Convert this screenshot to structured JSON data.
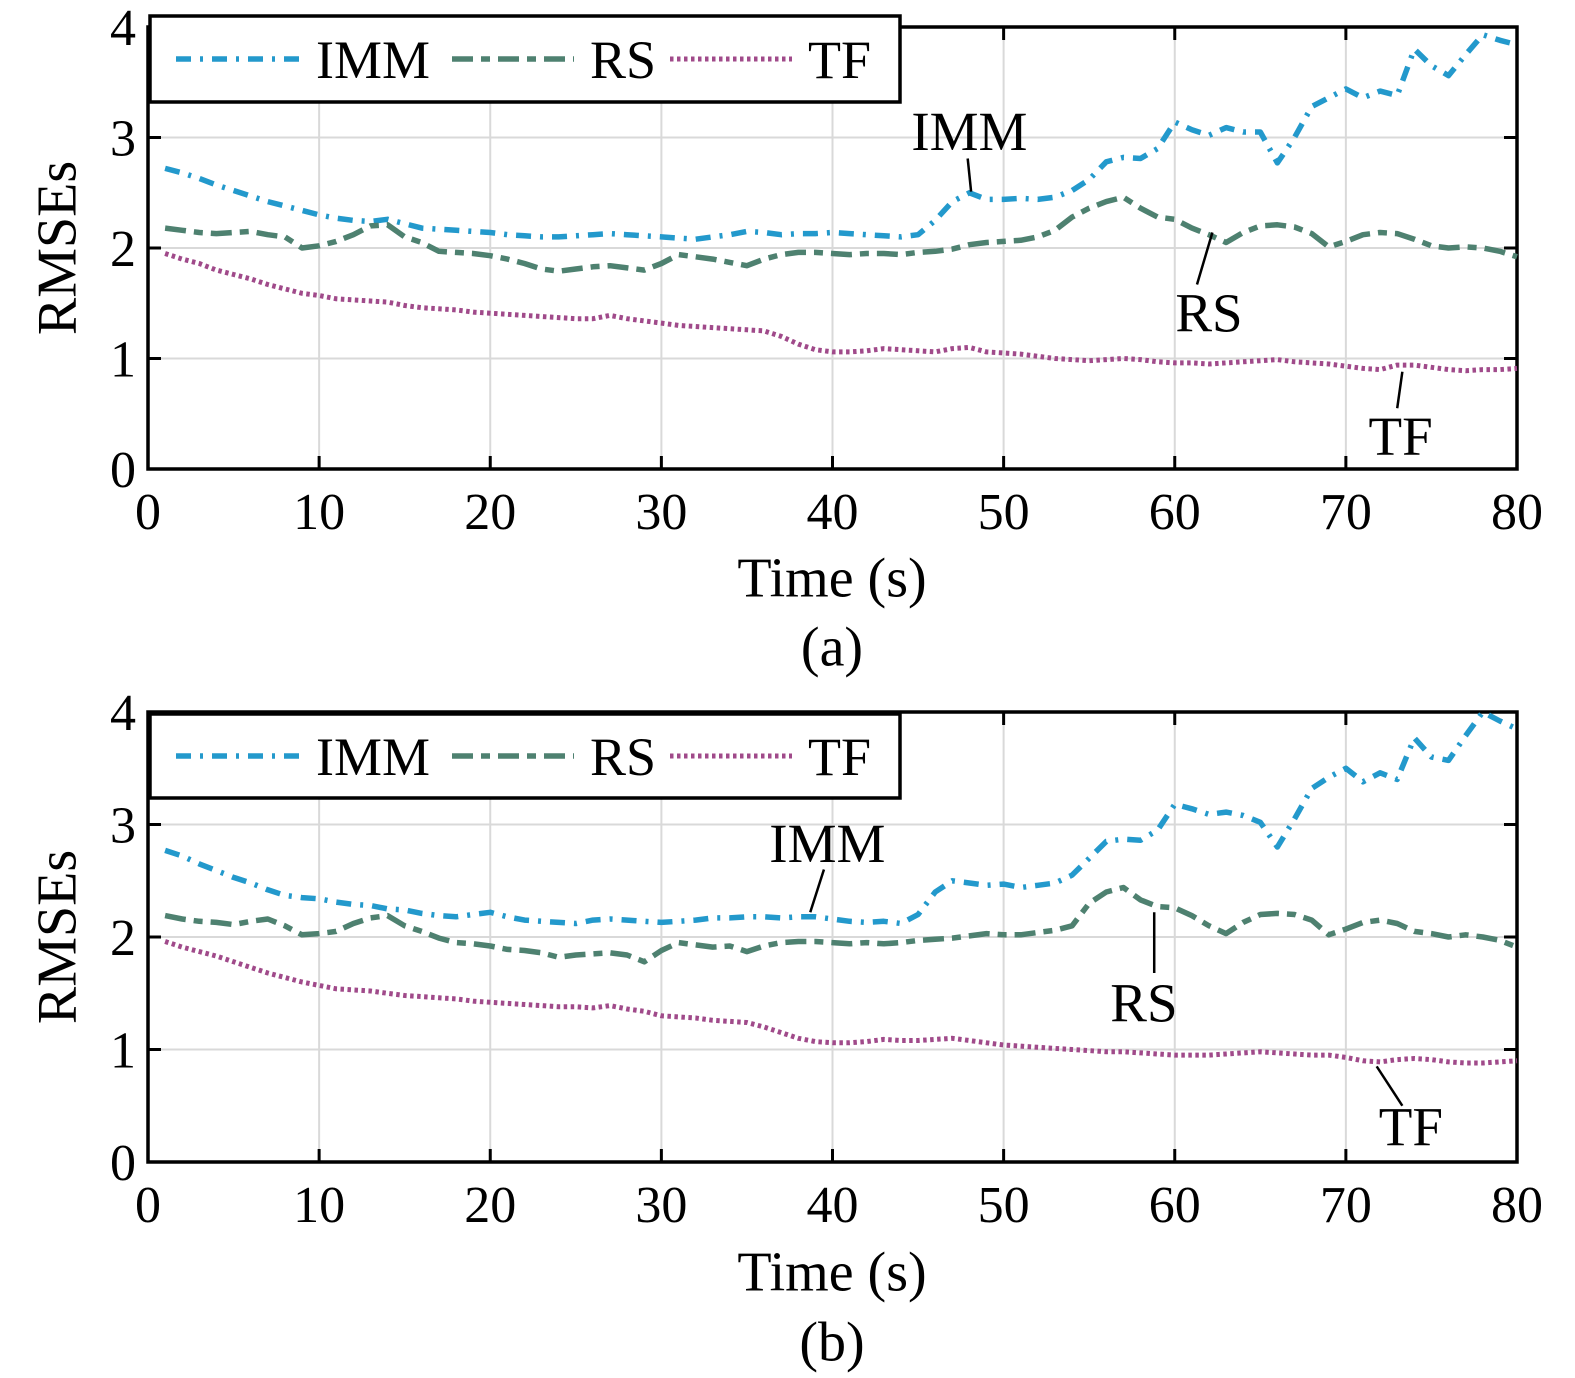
{
  "colors": {
    "imm": "#2399cc",
    "rs": "#4e8170",
    "tf": "#a04a8a",
    "grid": "#d9d9d9",
    "axis": "#000000"
  },
  "chart_data": [
    {
      "type": "line",
      "title": "(a)",
      "xlabel": "Time (s)",
      "ylabel": "RMSEs",
      "xlim": [
        0,
        80
      ],
      "ylim": [
        0,
        4
      ],
      "xticks": [
        0,
        10,
        20,
        30,
        40,
        50,
        60,
        70,
        80
      ],
      "yticks": [
        0,
        1,
        2,
        3,
        4
      ],
      "grid": true,
      "legend_position": "top-inside",
      "x_start": 1,
      "x_step": 1,
      "series": [
        {
          "name": "IMM",
          "color_key": "imm",
          "values": [
            2.72,
            2.68,
            2.63,
            2.57,
            2.52,
            2.47,
            2.42,
            2.38,
            2.34,
            2.3,
            2.27,
            2.25,
            2.24,
            2.26,
            2.22,
            2.18,
            2.17,
            2.16,
            2.15,
            2.14,
            2.12,
            2.11,
            2.1,
            2.1,
            2.11,
            2.12,
            2.13,
            2.12,
            2.11,
            2.1,
            2.09,
            2.08,
            2.1,
            2.12,
            2.15,
            2.14,
            2.12,
            2.13,
            2.13,
            2.14,
            2.13,
            2.12,
            2.11,
            2.1,
            2.12,
            2.25,
            2.42,
            2.5,
            2.44,
            2.44,
            2.45,
            2.44,
            2.46,
            2.52,
            2.62,
            2.78,
            2.82,
            2.81,
            2.9,
            3.14,
            3.07,
            3.02,
            3.09,
            3.05,
            3.05,
            2.77,
            3.0,
            3.28,
            3.36,
            3.44,
            3.36,
            3.42,
            3.38,
            3.8,
            3.65,
            3.56,
            3.75,
            3.93,
            3.88,
            3.84
          ]
        },
        {
          "name": "RS",
          "color_key": "rs",
          "values": [
            2.18,
            2.16,
            2.14,
            2.13,
            2.14,
            2.15,
            2.12,
            2.1,
            2.0,
            2.02,
            2.06,
            2.12,
            2.2,
            2.21,
            2.1,
            2.05,
            1.97,
            1.96,
            1.95,
            1.93,
            1.9,
            1.86,
            1.81,
            1.79,
            1.81,
            1.83,
            1.84,
            1.82,
            1.8,
            1.86,
            1.94,
            1.92,
            1.9,
            1.87,
            1.84,
            1.9,
            1.94,
            1.96,
            1.96,
            1.95,
            1.94,
            1.95,
            1.95,
            1.94,
            1.96,
            1.97,
            1.99,
            2.03,
            2.05,
            2.06,
            2.07,
            2.1,
            2.16,
            2.28,
            2.36,
            2.42,
            2.46,
            2.36,
            2.28,
            2.26,
            2.18,
            2.12,
            2.05,
            2.14,
            2.2,
            2.21,
            2.19,
            2.13,
            2.01,
            2.06,
            2.12,
            2.14,
            2.13,
            2.08,
            2.02,
            2.0,
            2.01,
            2.0,
            1.97,
            1.92
          ]
        },
        {
          "name": "TF",
          "color_key": "tf",
          "values": [
            1.95,
            1.9,
            1.86,
            1.8,
            1.76,
            1.72,
            1.67,
            1.63,
            1.59,
            1.57,
            1.54,
            1.53,
            1.52,
            1.51,
            1.48,
            1.46,
            1.45,
            1.44,
            1.42,
            1.41,
            1.4,
            1.39,
            1.38,
            1.37,
            1.36,
            1.36,
            1.39,
            1.36,
            1.34,
            1.32,
            1.3,
            1.29,
            1.28,
            1.27,
            1.26,
            1.25,
            1.2,
            1.13,
            1.08,
            1.06,
            1.06,
            1.07,
            1.09,
            1.08,
            1.07,
            1.06,
            1.09,
            1.1,
            1.06,
            1.05,
            1.04,
            1.02,
            1.0,
            0.99,
            0.98,
            0.99,
            1.0,
            0.99,
            0.97,
            0.96,
            0.96,
            0.95,
            0.96,
            0.97,
            0.98,
            0.99,
            0.97,
            0.96,
            0.95,
            0.93,
            0.91,
            0.9,
            0.94,
            0.94,
            0.92,
            0.9,
            0.89,
            0.9,
            0.9,
            0.91
          ]
        }
      ],
      "annotations": [
        {
          "label": "IMM",
          "text_at": [
            48.0,
            3.06
          ],
          "line": [
            [
              47.9,
              2.81
            ],
            [
              48.1,
              2.51
            ]
          ]
        },
        {
          "label": "RS",
          "text_at": [
            62.0,
            1.42
          ],
          "line": [
            [
              61.3,
              1.67
            ],
            [
              62.2,
              2.14
            ]
          ]
        },
        {
          "label": "TF",
          "text_at": [
            73.2,
            0.3
          ],
          "line": [
            [
              73.3,
              0.88
            ],
            [
              73.0,
              0.55
            ]
          ]
        }
      ]
    },
    {
      "type": "line",
      "title": "(b)",
      "xlabel": "Time (s)",
      "ylabel": "RMSEs",
      "xlim": [
        0,
        80
      ],
      "ylim": [
        0,
        4
      ],
      "xticks": [
        0,
        10,
        20,
        30,
        40,
        50,
        60,
        70,
        80
      ],
      "yticks": [
        0,
        1,
        2,
        3,
        4
      ],
      "grid": true,
      "legend_position": "top-inside",
      "x_start": 1,
      "x_step": 1,
      "series": [
        {
          "name": "IMM",
          "color_key": "imm",
          "values": [
            2.77,
            2.72,
            2.65,
            2.59,
            2.53,
            2.48,
            2.42,
            2.37,
            2.35,
            2.34,
            2.31,
            2.29,
            2.28,
            2.25,
            2.24,
            2.21,
            2.19,
            2.18,
            2.2,
            2.22,
            2.18,
            2.15,
            2.14,
            2.13,
            2.12,
            2.15,
            2.16,
            2.15,
            2.14,
            2.13,
            2.14,
            2.15,
            2.17,
            2.17,
            2.18,
            2.18,
            2.17,
            2.18,
            2.18,
            2.16,
            2.14,
            2.13,
            2.14,
            2.12,
            2.2,
            2.4,
            2.5,
            2.48,
            2.46,
            2.47,
            2.44,
            2.46,
            2.48,
            2.55,
            2.7,
            2.85,
            2.87,
            2.86,
            2.95,
            3.18,
            3.14,
            3.09,
            3.11,
            3.08,
            3.02,
            2.8,
            3.05,
            3.32,
            3.42,
            3.5,
            3.38,
            3.46,
            3.4,
            3.77,
            3.6,
            3.57,
            3.79,
            4.0,
            3.92,
            3.85
          ]
        },
        {
          "name": "RS",
          "color_key": "rs",
          "values": [
            2.19,
            2.16,
            2.14,
            2.13,
            2.11,
            2.14,
            2.16,
            2.1,
            2.02,
            2.03,
            2.05,
            2.12,
            2.17,
            2.19,
            2.1,
            2.05,
            1.99,
            1.95,
            1.94,
            1.92,
            1.89,
            1.88,
            1.86,
            1.82,
            1.84,
            1.85,
            1.86,
            1.84,
            1.78,
            1.88,
            1.95,
            1.93,
            1.91,
            1.92,
            1.87,
            1.92,
            1.95,
            1.96,
            1.96,
            1.95,
            1.94,
            1.95,
            1.94,
            1.95,
            1.97,
            1.98,
            1.99,
            2.01,
            2.03,
            2.02,
            2.02,
            2.04,
            2.06,
            2.1,
            2.3,
            2.4,
            2.44,
            2.33,
            2.27,
            2.26,
            2.19,
            2.1,
            2.03,
            2.13,
            2.2,
            2.21,
            2.2,
            2.15,
            2.02,
            2.07,
            2.13,
            2.15,
            2.12,
            2.05,
            2.03,
            2.0,
            2.02,
            2.0,
            1.97,
            1.91
          ]
        },
        {
          "name": "TF",
          "color_key": "tf",
          "values": [
            1.96,
            1.91,
            1.87,
            1.83,
            1.78,
            1.73,
            1.68,
            1.64,
            1.6,
            1.57,
            1.54,
            1.53,
            1.52,
            1.5,
            1.48,
            1.47,
            1.46,
            1.45,
            1.43,
            1.42,
            1.41,
            1.4,
            1.39,
            1.38,
            1.38,
            1.37,
            1.39,
            1.36,
            1.34,
            1.3,
            1.29,
            1.28,
            1.26,
            1.25,
            1.24,
            1.2,
            1.15,
            1.1,
            1.07,
            1.06,
            1.06,
            1.07,
            1.09,
            1.08,
            1.08,
            1.09,
            1.1,
            1.08,
            1.06,
            1.04,
            1.03,
            1.02,
            1.01,
            1.0,
            0.99,
            0.98,
            0.98,
            0.97,
            0.96,
            0.95,
            0.95,
            0.95,
            0.96,
            0.97,
            0.98,
            0.97,
            0.96,
            0.95,
            0.95,
            0.93,
            0.9,
            0.89,
            0.91,
            0.92,
            0.91,
            0.89,
            0.88,
            0.88,
            0.89,
            0.9
          ]
        }
      ],
      "annotations": [
        {
          "label": "IMM",
          "text_at": [
            39.7,
            2.84
          ],
          "line": [
            [
              39.5,
              2.6
            ],
            [
              38.7,
              2.22
            ]
          ]
        },
        {
          "label": "RS",
          "text_at": [
            58.2,
            1.42
          ],
          "line": [
            [
              58.8,
              1.68
            ],
            [
              58.8,
              2.22
            ]
          ]
        },
        {
          "label": "TF",
          "text_at": [
            73.8,
            0.32
          ],
          "line": [
            [
              71.8,
              0.85
            ],
            [
              73.3,
              0.5
            ]
          ]
        }
      ]
    }
  ]
}
